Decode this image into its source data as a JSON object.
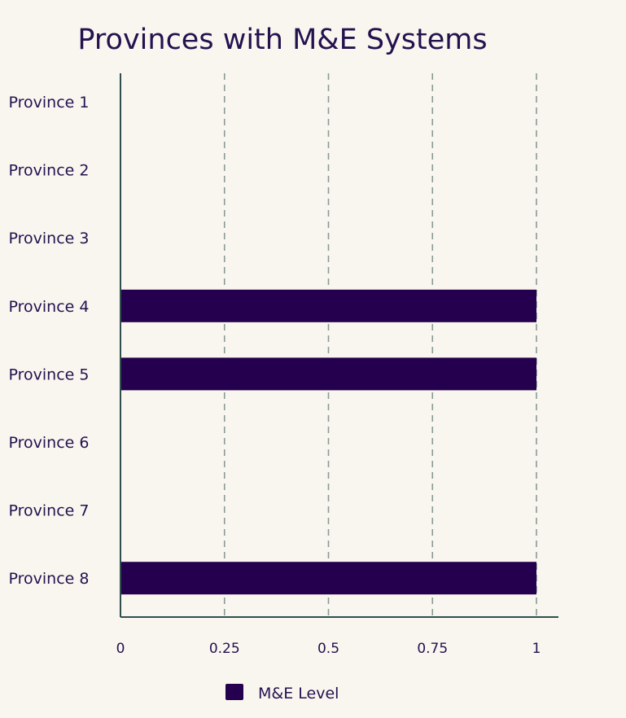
{
  "chart_data": {
    "type": "bar",
    "orientation": "horizontal",
    "title": "Provinces with M&E Systems",
    "categories": [
      "Province 1",
      "Province 2",
      "Province 3",
      "Province 4",
      "Province 5",
      "Province 6",
      "Province 7",
      "Province 8"
    ],
    "series": [
      {
        "name": "M&E Level",
        "values": [
          0,
          0,
          0,
          1,
          1,
          0,
          0,
          1
        ],
        "color": "#24004f"
      }
    ],
    "xlim": [
      0,
      1
    ],
    "xticks": [
      0,
      0.25,
      0.5,
      0.75,
      1
    ],
    "xtick_labels": [
      "0",
      "0.25",
      "0.5",
      "0.75",
      "1"
    ],
    "grid": true,
    "grid_style": "dashed",
    "legend_position": "bottom"
  },
  "colors": {
    "background": "#f9f6ef",
    "text": "#24124f",
    "axis": "#2f4f4f",
    "grid": "#8a9a95"
  }
}
